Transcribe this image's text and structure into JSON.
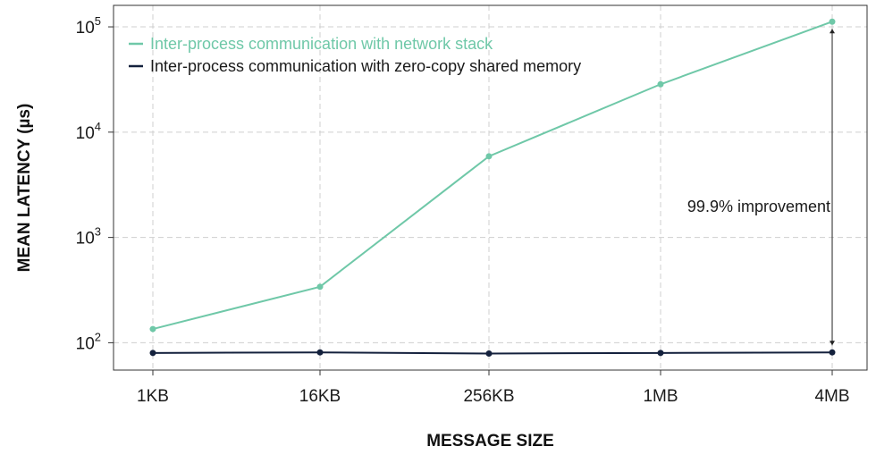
{
  "chart_data": {
    "type": "line",
    "xlabel": "MESSAGE SIZE",
    "ylabel": "MEAN LATENCY (µs)",
    "categories": [
      "1KB",
      "16KB",
      "256KB",
      "1MB",
      "4MB"
    ],
    "yscale": "log",
    "ylim": [
      55,
      160000
    ],
    "yticks": [
      {
        "base": "10",
        "exp": "2"
      },
      {
        "base": "10",
        "exp": "3"
      },
      {
        "base": "10",
        "exp": "4"
      },
      {
        "base": "10",
        "exp": "5"
      }
    ],
    "grid": true,
    "legend": "top-left",
    "series": [
      {
        "name": "Inter-process communication with network stack",
        "color": "#6fc8a8",
        "values": [
          135,
          340,
          5900,
          28500,
          112000
        ]
      },
      {
        "name": "Inter-process communication with zero-copy shared memory",
        "color": "#14213d",
        "values": [
          80,
          81,
          79,
          80,
          81
        ]
      }
    ],
    "annotation": {
      "text": "99.9% improvement",
      "at": "4MB",
      "from": 81,
      "to": 112000
    }
  }
}
